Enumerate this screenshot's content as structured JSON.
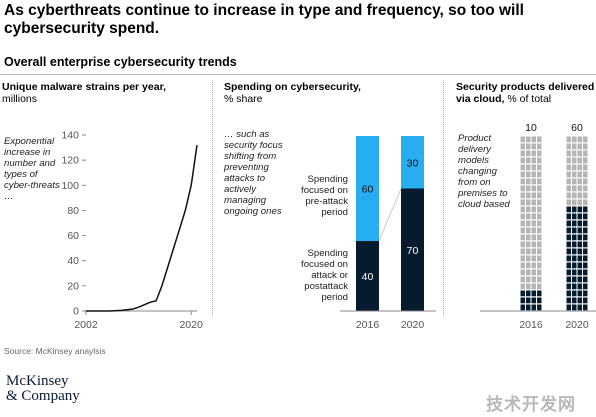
{
  "header": {
    "title": "As cyberthreats continue to increase in type and frequency, so too will cybersecurity spend.",
    "subtitle": "Overall enterprise cybersecurity trends"
  },
  "panels": {
    "malware": {
      "title_bold": "Unique malware strains per year,",
      "title_rest": "millions",
      "note": "Exponential increase in number and types of cyber-threats …"
    },
    "spending": {
      "title_bold": "Spending on cybersecurity,",
      "title_rest": "% share",
      "note": "… such as security focus shifting from preventing attacks to actively managing ongoing ones",
      "label_top": "Spending focused on pre-attack period",
      "label_bottom": "Spending focused on attack or postattack period"
    },
    "cloud": {
      "title_bold": "Security products delivered via cloud,",
      "title_rest": "% of total",
      "note": "Product delivery models changing from on premises to cloud based"
    }
  },
  "colors": {
    "light_blue": "#27aef0",
    "navy": "#071b2e",
    "gray": "#b5b5b5",
    "axis": "#8a8a8a"
  },
  "chart_data": [
    {
      "type": "line",
      "title": "Unique malware strains per year, millions",
      "x_ticks": [
        "2002",
        "2020"
      ],
      "xlim": [
        2002,
        2021
      ],
      "ylim": [
        0,
        140
      ],
      "y_ticks": [
        "0",
        "20",
        "40",
        "60",
        "80",
        "100",
        "120",
        "140"
      ],
      "series": [
        {
          "x": [
            2002,
            2004,
            2006,
            2008,
            2009,
            2010,
            2011,
            2012,
            2013,
            2014,
            2015,
            2016,
            2017,
            2018,
            2019,
            2020,
            2021
          ],
          "values": [
            0,
            0,
            0,
            0.5,
            1,
            1.5,
            3,
            5,
            7,
            8,
            20,
            35,
            50,
            65,
            80,
            100,
            132
          ]
        }
      ]
    },
    {
      "type": "bar",
      "stacked": true,
      "title": "Spending on cybersecurity, % share",
      "categories": [
        "2016",
        "2020"
      ],
      "series": [
        {
          "name": "Spending focused on attack or postattack period",
          "values": [
            40,
            70
          ]
        },
        {
          "name": "Spending focused on pre-attack period",
          "values": [
            60,
            30
          ]
        }
      ]
    },
    {
      "type": "bar",
      "title": "Security products delivered via cloud, % of total",
      "categories": [
        "2016",
        "2020"
      ],
      "values": [
        10,
        60
      ]
    }
  ]
}
